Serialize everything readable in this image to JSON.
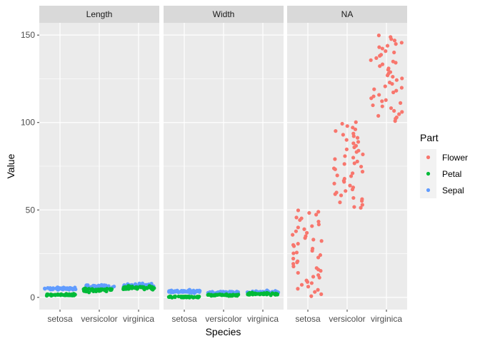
{
  "chart_data": {
    "type": "scatter",
    "title": "",
    "xlabel": "Species",
    "ylabel": "Value",
    "facets": [
      "Length",
      "Width",
      "NA"
    ],
    "categories": [
      "setosa",
      "versicolor",
      "virginica"
    ],
    "y_ticks": [
      0,
      50,
      100,
      150
    ],
    "ylim": [
      -7,
      157
    ],
    "grid": true,
    "legend": {
      "title": "Part",
      "position": "right",
      "entries": [
        "Flower",
        "Petal",
        "Sepal"
      ]
    },
    "colors": {
      "Flower": "#F8766D",
      "Petal": "#00BA38",
      "Sepal": "#619CFF",
      "panel_bg": "#EBEBEB",
      "strip_bg": "#D9D9D9",
      "grid": "#FFFFFF",
      "text": "#4D4D4D"
    },
    "jitter": true,
    "series": [
      {
        "name": "Sepal",
        "facet": "Length",
        "category": "setosa",
        "values": [
          5.1,
          4.9,
          4.7,
          4.6,
          5.0,
          5.4,
          4.6,
          5.0,
          4.4,
          4.9,
          5.4,
          4.8,
          4.8,
          4.3,
          5.8,
          5.7,
          5.4,
          5.1,
          5.7,
          5.1,
          5.4,
          5.1,
          4.6,
          5.1,
          4.8,
          5.0,
          5.0,
          5.2,
          5.2,
          4.7,
          4.8,
          5.4,
          5.2,
          5.5,
          4.9,
          5.0,
          5.5,
          4.9,
          4.4,
          5.1,
          5.0,
          4.5,
          4.4,
          5.0,
          5.1,
          4.8,
          5.1,
          4.6,
          5.3,
          5.0
        ]
      },
      {
        "name": "Sepal",
        "facet": "Length",
        "category": "versicolor",
        "values": [
          7.0,
          6.4,
          6.9,
          5.5,
          6.5,
          5.7,
          6.3,
          4.9,
          6.6,
          5.2,
          5.0,
          5.9,
          6.0,
          6.1,
          5.6,
          6.7,
          5.6,
          5.8,
          6.2,
          5.6,
          5.9,
          6.1,
          6.3,
          6.1,
          6.4,
          6.6,
          6.8,
          6.7,
          6.0,
          5.7,
          5.5,
          5.5,
          5.8,
          6.0,
          5.4,
          6.0,
          6.7,
          6.3,
          5.6,
          5.5,
          5.5,
          6.1,
          5.8,
          5.0,
          5.6,
          5.7,
          5.7,
          6.2,
          5.1,
          5.7
        ]
      },
      {
        "name": "Sepal",
        "facet": "Length",
        "category": "virginica",
        "values": [
          6.3,
          5.8,
          7.1,
          6.3,
          6.5,
          7.6,
          4.9,
          7.3,
          6.7,
          7.2,
          6.5,
          6.4,
          6.8,
          5.7,
          5.8,
          6.4,
          6.5,
          7.7,
          7.7,
          6.0,
          6.9,
          5.6,
          7.7,
          6.3,
          6.7,
          7.2,
          6.2,
          6.1,
          6.4,
          7.2,
          7.4,
          7.9,
          6.4,
          6.3,
          6.1,
          7.7,
          6.3,
          6.4,
          6.0,
          6.9,
          6.7,
          6.9,
          5.8,
          6.8,
          6.7,
          6.7,
          6.3,
          6.5,
          6.2,
          5.9
        ]
      },
      {
        "name": "Petal",
        "facet": "Length",
        "category": "setosa",
        "values": [
          1.4,
          1.4,
          1.3,
          1.5,
          1.4,
          1.7,
          1.4,
          1.5,
          1.4,
          1.5,
          1.5,
          1.6,
          1.4,
          1.1,
          1.2,
          1.5,
          1.3,
          1.4,
          1.7,
          1.5,
          1.7,
          1.5,
          1.0,
          1.7,
          1.9,
          1.6,
          1.6,
          1.5,
          1.4,
          1.6,
          1.6,
          1.5,
          1.5,
          1.4,
          1.5,
          1.2,
          1.3,
          1.4,
          1.3,
          1.5,
          1.3,
          1.3,
          1.3,
          1.6,
          1.9,
          1.4,
          1.6,
          1.4,
          1.5,
          1.4
        ]
      },
      {
        "name": "Petal",
        "facet": "Length",
        "category": "versicolor",
        "values": [
          4.7,
          4.5,
          4.9,
          4.0,
          4.6,
          4.5,
          4.7,
          3.3,
          4.6,
          3.9,
          3.5,
          4.2,
          4.0,
          4.7,
          3.6,
          4.4,
          4.5,
          4.1,
          4.5,
          3.9,
          4.8,
          4.0,
          4.9,
          4.7,
          4.3,
          4.4,
          4.8,
          5.0,
          4.5,
          3.5,
          3.8,
          3.7,
          3.9,
          5.1,
          4.5,
          4.5,
          4.7,
          4.4,
          4.1,
          4.0,
          4.4,
          4.6,
          4.0,
          3.3,
          4.2,
          4.2,
          4.2,
          4.3,
          3.0,
          4.1
        ]
      },
      {
        "name": "Petal",
        "facet": "Length",
        "category": "virginica",
        "values": [
          6.0,
          5.1,
          5.9,
          5.6,
          5.8,
          6.6,
          4.5,
          6.3,
          5.8,
          6.1,
          5.1,
          5.3,
          5.5,
          5.0,
          5.1,
          5.3,
          5.5,
          6.7,
          6.9,
          5.0,
          5.7,
          4.9,
          6.7,
          4.9,
          5.7,
          6.0,
          4.8,
          4.9,
          5.6,
          5.8,
          6.1,
          6.4,
          5.6,
          5.1,
          5.6,
          6.1,
          5.6,
          5.5,
          4.8,
          5.4,
          5.6,
          5.1,
          5.1,
          5.9,
          5.7,
          5.2,
          5.0,
          5.2,
          5.4,
          5.1
        ]
      },
      {
        "name": "Sepal",
        "facet": "Width",
        "category": "setosa",
        "values": [
          3.5,
          3.0,
          3.2,
          3.1,
          3.6,
          3.9,
          3.4,
          3.4,
          2.9,
          3.1,
          3.7,
          3.4,
          3.0,
          3.0,
          4.0,
          4.4,
          3.9,
          3.5,
          3.8,
          3.8,
          3.4,
          3.7,
          3.6,
          3.3,
          3.4,
          3.0,
          3.4,
          3.5,
          3.4,
          3.2,
          3.1,
          3.4,
          4.1,
          4.2,
          3.1,
          3.2,
          3.5,
          3.6,
          3.0,
          3.4,
          3.5,
          2.3,
          3.2,
          3.5,
          3.8,
          3.0,
          3.8,
          3.2,
          3.7,
          3.3
        ]
      },
      {
        "name": "Sepal",
        "facet": "Width",
        "category": "versicolor",
        "values": [
          3.2,
          3.2,
          3.1,
          2.3,
          2.8,
          2.8,
          3.3,
          2.4,
          2.9,
          2.7,
          2.0,
          3.0,
          2.2,
          2.9,
          2.9,
          3.1,
          3.0,
          2.7,
          2.2,
          2.5,
          3.2,
          2.8,
          2.5,
          2.8,
          2.9,
          3.0,
          2.8,
          3.0,
          2.9,
          2.6,
          2.4,
          2.4,
          2.7,
          2.7,
          3.0,
          3.4,
          3.1,
          2.3,
          3.0,
          2.5,
          2.6,
          3.0,
          2.6,
          2.3,
          2.7,
          3.0,
          2.9,
          2.9,
          2.5,
          2.8
        ]
      },
      {
        "name": "Sepal",
        "facet": "Width",
        "category": "virginica",
        "values": [
          3.3,
          2.7,
          3.0,
          2.9,
          3.0,
          3.0,
          2.5,
          2.9,
          2.5,
          3.6,
          3.2,
          2.7,
          3.0,
          2.5,
          2.8,
          3.2,
          3.0,
          3.8,
          2.6,
          2.2,
          3.2,
          2.8,
          2.8,
          2.7,
          3.3,
          3.2,
          2.8,
          3.0,
          2.8,
          3.0,
          2.8,
          3.8,
          2.8,
          2.8,
          2.6,
          3.0,
          3.4,
          3.1,
          3.0,
          3.1,
          3.1,
          3.1,
          2.7,
          3.2,
          3.3,
          3.0,
          2.5,
          3.0,
          3.4,
          3.0
        ]
      },
      {
        "name": "Petal",
        "facet": "Width",
        "category": "setosa",
        "values": [
          0.2,
          0.2,
          0.2,
          0.2,
          0.2,
          0.4,
          0.3,
          0.2,
          0.2,
          0.1,
          0.2,
          0.2,
          0.1,
          0.1,
          0.2,
          0.4,
          0.4,
          0.3,
          0.3,
          0.3,
          0.2,
          0.4,
          0.2,
          0.5,
          0.2,
          0.2,
          0.4,
          0.2,
          0.2,
          0.2,
          0.2,
          0.4,
          0.1,
          0.2,
          0.2,
          0.2,
          0.2,
          0.1,
          0.2,
          0.2,
          0.3,
          0.3,
          0.2,
          0.6,
          0.4,
          0.3,
          0.2,
          0.2,
          0.2,
          0.2
        ]
      },
      {
        "name": "Petal",
        "facet": "Width",
        "category": "versicolor",
        "values": [
          1.4,
          1.5,
          1.5,
          1.3,
          1.5,
          1.3,
          1.6,
          1.0,
          1.3,
          1.4,
          1.0,
          1.5,
          1.0,
          1.4,
          1.3,
          1.4,
          1.5,
          1.0,
          1.5,
          1.1,
          1.8,
          1.3,
          1.5,
          1.2,
          1.3,
          1.4,
          1.4,
          1.7,
          1.5,
          1.0,
          1.1,
          1.0,
          1.2,
          1.6,
          1.5,
          1.6,
          1.5,
          1.3,
          1.3,
          1.3,
          1.2,
          1.4,
          1.2,
          1.0,
          1.3,
          1.2,
          1.3,
          1.3,
          1.1,
          1.3
        ]
      },
      {
        "name": "Petal",
        "facet": "Width",
        "category": "virginica",
        "values": [
          2.5,
          1.9,
          2.1,
          1.8,
          2.2,
          2.1,
          1.7,
          1.8,
          1.8,
          2.5,
          2.0,
          1.9,
          2.1,
          2.0,
          2.4,
          2.3,
          1.8,
          2.2,
          2.3,
          1.5,
          2.3,
          2.0,
          2.0,
          1.8,
          2.1,
          1.8,
          1.8,
          1.8,
          2.1,
          1.6,
          1.9,
          2.0,
          2.2,
          1.5,
          1.4,
          2.3,
          2.4,
          1.8,
          1.8,
          2.1,
          2.4,
          2.3,
          1.9,
          2.3,
          2.5,
          2.3,
          1.9,
          2.0,
          2.3,
          1.8
        ]
      },
      {
        "name": "Flower",
        "facet": "NA",
        "category": "setosa",
        "values": [
          1,
          2,
          3,
          4,
          5,
          6,
          7,
          8,
          9,
          10,
          11,
          12,
          13,
          14,
          15,
          16,
          17,
          18,
          19,
          20,
          21,
          22,
          23,
          24,
          25,
          26,
          27,
          28,
          29,
          30,
          31,
          32,
          33,
          34,
          35,
          36,
          37,
          38,
          39,
          40,
          41,
          42,
          43,
          44,
          45,
          46,
          47,
          48,
          49,
          50
        ]
      },
      {
        "name": "Flower",
        "facet": "NA",
        "category": "versicolor",
        "values": [
          51,
          52,
          53,
          54,
          55,
          56,
          57,
          58,
          59,
          60,
          61,
          62,
          63,
          64,
          65,
          66,
          67,
          68,
          69,
          70,
          71,
          72,
          73,
          74,
          75,
          76,
          77,
          78,
          79,
          80,
          81,
          82,
          83,
          84,
          85,
          86,
          87,
          88,
          89,
          90,
          91,
          92,
          93,
          94,
          95,
          96,
          97,
          98,
          99,
          100
        ]
      },
      {
        "name": "Flower",
        "facet": "NA",
        "category": "virginica",
        "values": [
          101,
          102,
          103,
          104,
          105,
          106,
          107,
          108,
          109,
          110,
          111,
          112,
          113,
          114,
          115,
          116,
          117,
          118,
          119,
          120,
          121,
          122,
          123,
          124,
          125,
          126,
          127,
          128,
          129,
          130,
          131,
          132,
          133,
          134,
          135,
          136,
          137,
          138,
          139,
          140,
          141,
          142,
          143,
          144,
          145,
          146,
          147,
          148,
          149,
          150
        ]
      }
    ]
  }
}
